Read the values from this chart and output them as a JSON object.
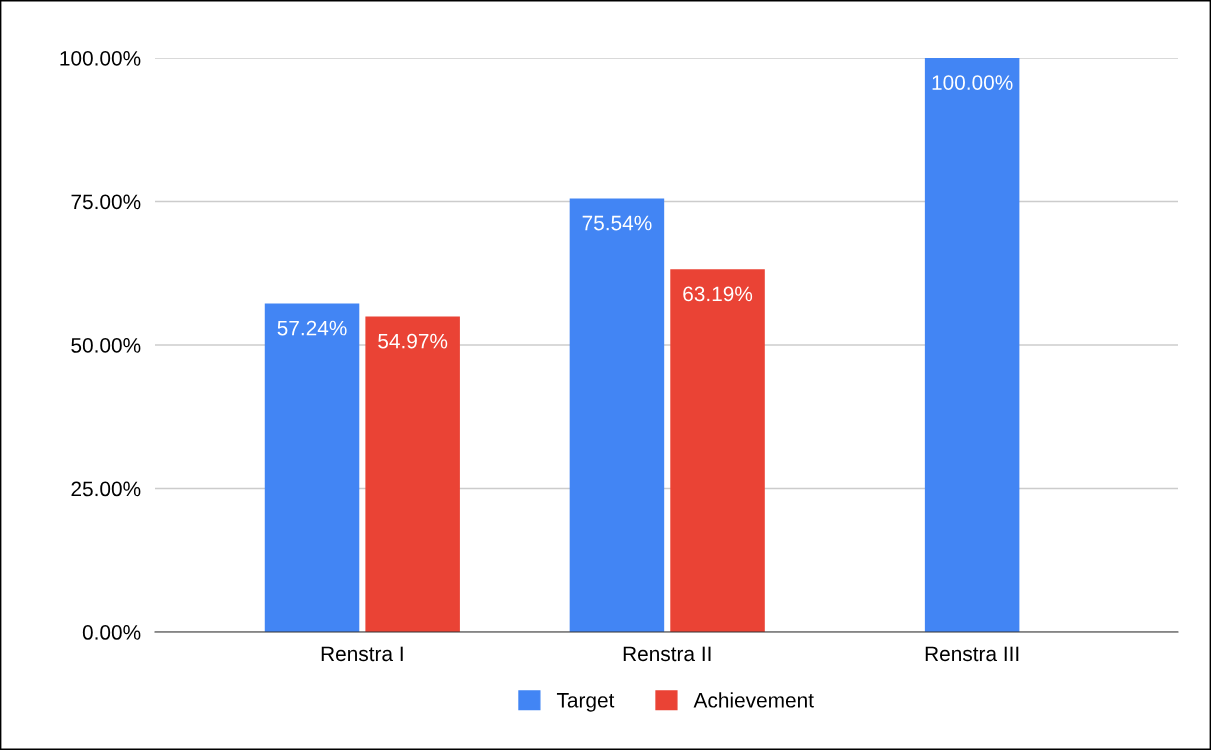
{
  "chart_data": {
    "type": "bar",
    "categories": [
      "Renstra I",
      "Renstra II",
      "Renstra III"
    ],
    "series": [
      {
        "name": "Target",
        "color": "#4285f4",
        "values": [
          57.24,
          75.54,
          100.0
        ],
        "value_labels": [
          "57.24%",
          "75.54%",
          "100.00%"
        ]
      },
      {
        "name": "Achievement",
        "color": "#ea4335",
        "values": [
          54.97,
          63.19,
          null
        ],
        "value_labels": [
          "54.97%",
          "63.19%",
          null
        ]
      }
    ],
    "ylim": [
      0,
      100
    ],
    "yticks": [
      {
        "value": 0,
        "label": "0.00%"
      },
      {
        "value": 25,
        "label": "25.00%"
      },
      {
        "value": 50,
        "label": "50.00%"
      },
      {
        "value": 75,
        "label": "75.00%"
      },
      {
        "value": 100,
        "label": "100.00%"
      }
    ],
    "grid": "y",
    "legend": "bottom"
  }
}
